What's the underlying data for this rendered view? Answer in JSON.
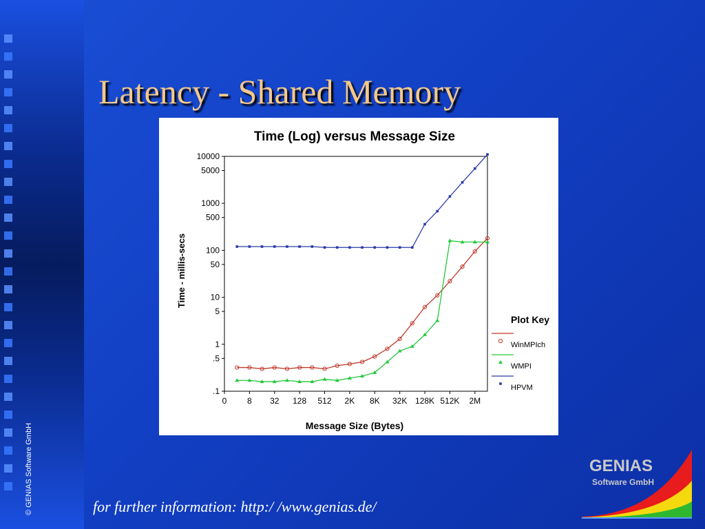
{
  "slide": {
    "title": "Latency - Shared Memory",
    "footer": "for further information: http:/ /www.genias.de/",
    "copyright": "© GENIAS Software GmbH",
    "logo_name": "GENIAS",
    "logo_sub": "Software GmbH"
  },
  "chart_data": {
    "type": "line",
    "title": "Time (Log) versus Message Size",
    "xlabel": "Message Size (Bytes)",
    "ylabel": "Time - millis-secs",
    "y_scale": "log",
    "ylim": [
      0.1,
      10000
    ],
    "y_ticks": [
      {
        "label": "10000",
        "value": 10000
      },
      {
        "label": "5000",
        "value": 5000
      },
      {
        "label": "1000",
        "value": 1000
      },
      {
        "label": "500",
        "value": 500
      },
      {
        "label": "100",
        "value": 100
      },
      {
        "label": "50",
        "value": 50
      },
      {
        "label": "10",
        "value": 10
      },
      {
        "label": "5",
        "value": 5
      },
      {
        "label": "1",
        "value": 1
      },
      {
        "label": ".5",
        "value": 0.5
      },
      {
        "label": ".1",
        "value": 0.1
      }
    ],
    "x_ticks": [
      "0",
      "8",
      "32",
      "128",
      "512",
      "2K",
      "8K",
      "32K",
      "128K",
      "512K",
      "2M"
    ],
    "x_tick_positions": [
      0,
      2,
      4,
      6,
      8,
      10,
      12,
      14,
      16,
      18,
      20
    ],
    "x": [
      1,
      2,
      3,
      4,
      5,
      6,
      7,
      8,
      9,
      10,
      11,
      12,
      13,
      14,
      15,
      16,
      17,
      18,
      19,
      20,
      21
    ],
    "legend_title": "Plot Key",
    "legend_position": "right",
    "series": [
      {
        "name": "WinMPIch",
        "color": "#c0392b",
        "marker": "circle",
        "values": [
          0.32,
          0.32,
          0.3,
          0.32,
          0.3,
          0.32,
          0.32,
          0.3,
          0.35,
          0.38,
          0.42,
          0.55,
          0.8,
          1.3,
          2.8,
          6.2,
          11.0,
          22.0,
          45.0,
          95.0,
          180.0
        ]
      },
      {
        "name": "WMPI",
        "color": "#22c93a",
        "marker": "triangle",
        "values": [
          0.17,
          0.17,
          0.16,
          0.16,
          0.17,
          0.16,
          0.16,
          0.18,
          0.17,
          0.19,
          0.21,
          0.25,
          0.42,
          0.72,
          0.9,
          1.6,
          3.2,
          160.0,
          150.0,
          150.0,
          150.0
        ]
      },
      {
        "name": "HPVM",
        "color": "#2a3aa8",
        "marker": "square",
        "values": [
          120,
          120,
          120,
          120,
          120,
          120,
          120,
          115,
          115,
          115,
          115,
          115,
          115,
          115,
          115,
          360,
          680,
          1400,
          2800,
          5500,
          11000
        ]
      }
    ]
  }
}
